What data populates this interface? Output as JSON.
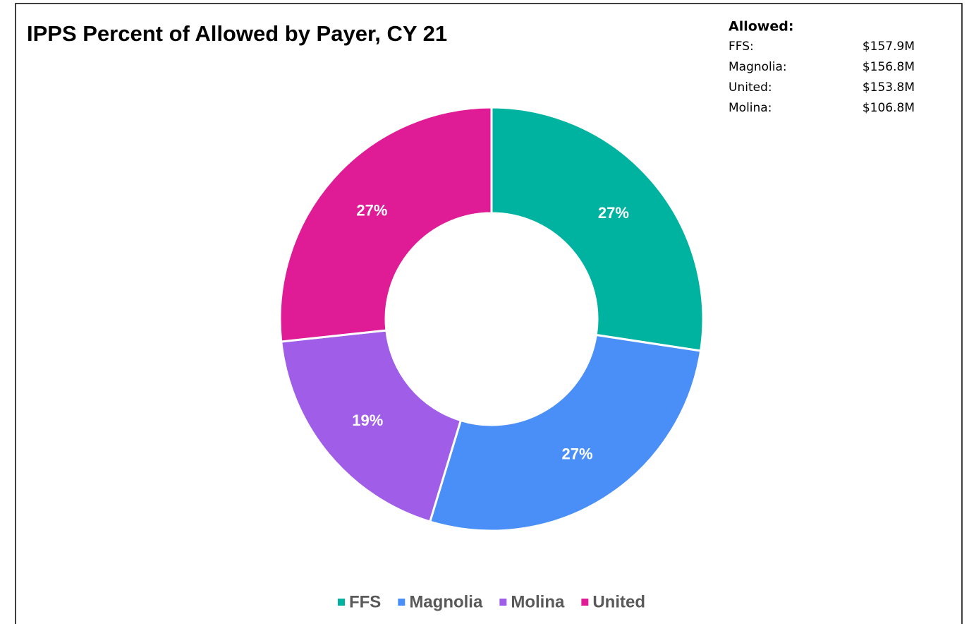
{
  "chart_data": {
    "type": "donut",
    "title": "IPPS Percent of Allowed by Payer, CY 21",
    "categories": [
      "FFS",
      "Magnolia",
      "Molina",
      "United"
    ],
    "values": [
      27.4,
      27.3,
      18.6,
      26.7
    ],
    "value_labels": [
      "27%",
      "27%",
      "19%",
      "27%"
    ],
    "colors": [
      "#00b3a0",
      "#4a8ff8",
      "#a05ee8",
      "#df1b96"
    ],
    "legend": "bottom",
    "annotation": {
      "title": "Allowed:",
      "rows": [
        [
          "FFS:",
          "$157.9M"
        ],
        [
          "Magnolia:",
          "$156.8M"
        ],
        [
          "United:",
          "$153.8M"
        ],
        [
          "Molina:",
          "$106.8M"
        ]
      ]
    }
  }
}
